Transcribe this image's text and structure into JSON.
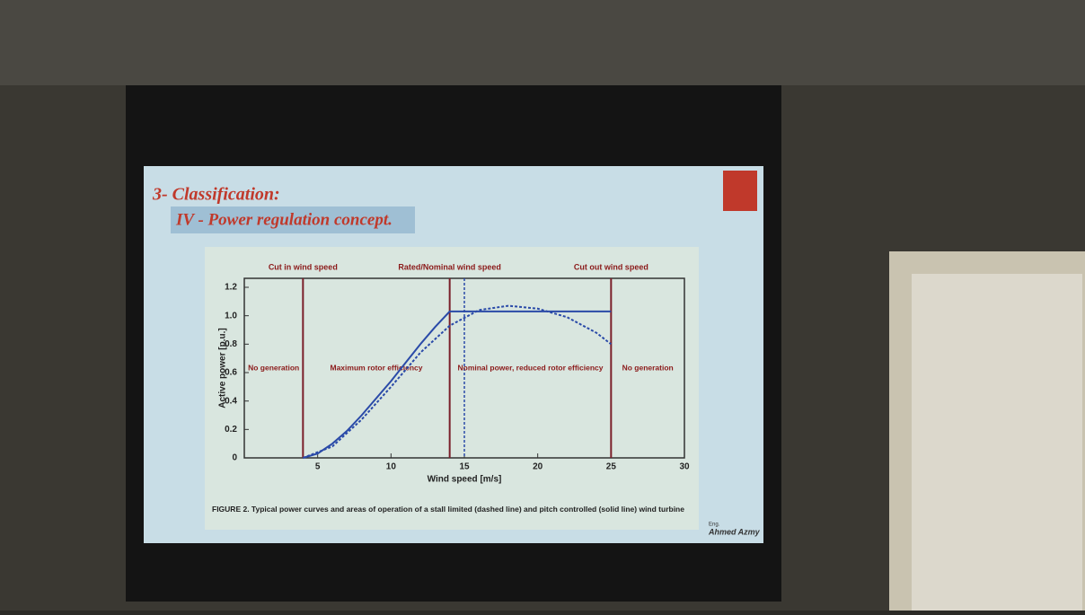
{
  "slide": {
    "heading": "3- Classification:",
    "subheading": "IV - Power regulation concept.",
    "caption": "FIGURE 2. Typical power curves and areas of operation of a stall limited (dashed line) and pitch controlled (solid line) wind turbine",
    "signature_prefix": "Eng.",
    "signature": "Ahmed Azmy"
  },
  "chart_data": {
    "type": "line",
    "x_label": "Wind speed [m/s]",
    "y_label": "Active power [p.u.]",
    "xlim": [
      0,
      30
    ],
    "ylim": [
      0,
      1.2
    ],
    "xticks": [
      5,
      10,
      15,
      20,
      25,
      30
    ],
    "yticks": [
      0,
      0.2,
      0.4,
      0.6,
      0.8,
      {
        "value": 1,
        "label": "1.0"
      },
      1.2
    ],
    "series": [
      {
        "color": "#2a4aa8",
        "dashed": false,
        "x": [
          4,
          5,
          6,
          7,
          8,
          9,
          10,
          11,
          12,
          13,
          14,
          25
        ],
        "values": [
          0,
          0.03,
          0.1,
          0.19,
          0.3,
          0.42,
          0.54,
          0.67,
          0.8,
          0.92,
          1.03,
          1.03
        ]
      },
      {
        "color": "#2a4aa8",
        "dashed": true,
        "x": [
          4,
          6,
          8,
          10,
          12,
          14,
          16,
          18,
          20,
          22,
          24,
          25
        ],
        "values": [
          0,
          0.08,
          0.27,
          0.5,
          0.74,
          0.93,
          1.04,
          1.07,
          1.05,
          0.99,
          0.88,
          0.8
        ]
      }
    ],
    "vlines": [
      {
        "value": 4,
        "label": "Cut in wind speed"
      },
      {
        "value": 14,
        "label": "Rated/Nominal wind speed"
      },
      {
        "value": 25,
        "label": "Cut out wind speed"
      }
    ],
    "dashed_vline": 15,
    "regions": [
      "No generation",
      "Maximum rotor efficiency",
      "Nominal power, reduced rotor efficiency",
      "No generation"
    ]
  }
}
